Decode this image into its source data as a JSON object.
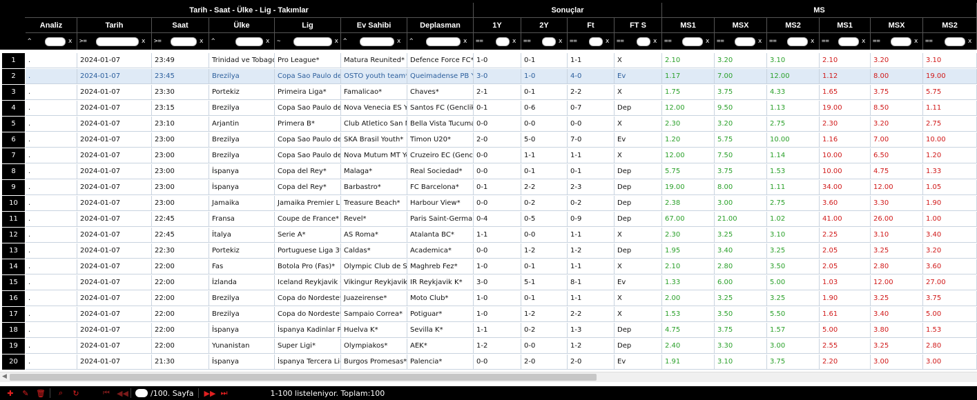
{
  "groups": [
    {
      "id": "info",
      "label": "Tarih - Saat - Ülke - Lig - Takımlar"
    },
    {
      "id": "results",
      "label": "Sonuçlar"
    },
    {
      "id": "ms",
      "label": "MS"
    }
  ],
  "columns": [
    {
      "key": "analiz",
      "label": "Analiz",
      "op": "^"
    },
    {
      "key": "tarih",
      "label": "Tarih",
      "op": ">="
    },
    {
      "key": "saat",
      "label": "Saat",
      "op": ">="
    },
    {
      "key": "ulke",
      "label": "Ülke",
      "op": "^"
    },
    {
      "key": "lig",
      "label": "Lig",
      "op": "~"
    },
    {
      "key": "ev",
      "label": "Ev Sahibi",
      "op": "^"
    },
    {
      "key": "dep",
      "label": "Deplasman",
      "op": "^"
    },
    {
      "key": "y1",
      "label": "1Y",
      "op": "=="
    },
    {
      "key": "y2",
      "label": "2Y",
      "op": "=="
    },
    {
      "key": "ft",
      "label": "Ft",
      "op": "=="
    },
    {
      "key": "fts",
      "label": "FT S",
      "op": "=="
    },
    {
      "key": "ms1a",
      "label": "MS1",
      "op": "=="
    },
    {
      "key": "msxa",
      "label": "MSX",
      "op": "=="
    },
    {
      "key": "ms2a",
      "label": "MS2",
      "op": "=="
    },
    {
      "key": "ms1b",
      "label": "MS1",
      "op": "=="
    },
    {
      "key": "msxb",
      "label": "MSX",
      "op": "=="
    },
    {
      "key": "ms2b",
      "label": "MS2",
      "op": "=="
    }
  ],
  "filter_clear": "x",
  "selected_row": 2,
  "rows": [
    [
      "1",
      ".",
      "2024-01-07",
      "23:49",
      "Trinidad ve Tobago",
      "Pro League*",
      "Matura Reunited*",
      "Defence Force FC*",
      "1-0",
      "0-1",
      "1-1",
      "X",
      "2.10",
      "3.20",
      "3.10",
      "2.10",
      "3.20",
      "3.10"
    ],
    [
      "2",
      ".",
      "2024-01-07",
      "23:45",
      "Brezilya",
      "Copa Sao Paulo de Futebol",
      "OSTO youth team*",
      "Queimadense PB Youth*",
      "3-0",
      "1-0",
      "4-0",
      "Ev",
      "1.17",
      "7.00",
      "12.00",
      "1.12",
      "8.00",
      "19.00"
    ],
    [
      "3",
      ".",
      "2024-01-07",
      "23:30",
      "Portekiz",
      "Primeira Liga*",
      "Famalicao*",
      "Chaves*",
      "2-1",
      "0-1",
      "2-2",
      "X",
      "1.75",
      "3.75",
      "4.33",
      "1.65",
      "3.75",
      "5.75"
    ],
    [
      "4",
      ".",
      "2024-01-07",
      "23:15",
      "Brezilya",
      "Copa Sao Paulo de Futebol",
      "Nova Venecia ES Youth",
      "Santos FC (Genclik)*",
      "0-1",
      "0-6",
      "0-7",
      "Dep",
      "12.00",
      "9.50",
      "1.13",
      "19.00",
      "8.50",
      "1.11"
    ],
    [
      "5",
      ".",
      "2024-01-07",
      "23:10",
      "Arjantin",
      "Primera B*",
      "Club Atletico San Miguel",
      "Bella Vista Tucuman*",
      "0-0",
      "0-0",
      "0-0",
      "X",
      "2.30",
      "3.20",
      "2.75",
      "2.30",
      "3.20",
      "2.75"
    ],
    [
      "6",
      ".",
      "2024-01-07",
      "23:00",
      "Brezilya",
      "Copa Sao Paulo de Futebol",
      "SKA Brasil Youth*",
      "Timon U20*",
      "2-0",
      "5-0",
      "7-0",
      "Ev",
      "1.20",
      "5.75",
      "10.00",
      "1.16",
      "7.00",
      "10.00"
    ],
    [
      "7",
      ".",
      "2024-01-07",
      "23:00",
      "Brezilya",
      "Copa Sao Paulo de Futebol",
      "Nova Mutum MT Youth",
      "Cruzeiro EC (Genclik)",
      "0-0",
      "1-1",
      "1-1",
      "X",
      "12.00",
      "7.50",
      "1.14",
      "10.00",
      "6.50",
      "1.20"
    ],
    [
      "8",
      ".",
      "2024-01-07",
      "23:00",
      "İspanya",
      "Copa del Rey*",
      "Malaga*",
      "Real Sociedad*",
      "0-0",
      "0-1",
      "0-1",
      "Dep",
      "5.75",
      "3.75",
      "1.53",
      "10.00",
      "4.75",
      "1.33"
    ],
    [
      "9",
      ".",
      "2024-01-07",
      "23:00",
      "İspanya",
      "Copa del Rey*",
      "Barbastro*",
      "FC Barcelona*",
      "0-1",
      "2-2",
      "2-3",
      "Dep",
      "19.00",
      "8.00",
      "1.11",
      "34.00",
      "12.00",
      "1.05"
    ],
    [
      "10",
      ".",
      "2024-01-07",
      "23:00",
      "Jamaika",
      "Jamaika Premier Ligi*",
      "Treasure Beach*",
      "Harbour View*",
      "0-0",
      "0-2",
      "0-2",
      "Dep",
      "2.38",
      "3.00",
      "2.75",
      "3.60",
      "3.30",
      "1.90"
    ],
    [
      "11",
      ".",
      "2024-01-07",
      "22:45",
      "Fransa",
      "Coupe de France*",
      "Revel*",
      "Paris Saint-Germain*",
      "0-4",
      "0-5",
      "0-9",
      "Dep",
      "67.00",
      "21.00",
      "1.02",
      "41.00",
      "26.00",
      "1.00"
    ],
    [
      "12",
      ".",
      "2024-01-07",
      "22:45",
      "İtalya",
      "Serie A*",
      "AS Roma*",
      "Atalanta BC*",
      "1-1",
      "0-0",
      "1-1",
      "X",
      "2.30",
      "3.25",
      "3.10",
      "2.25",
      "3.10",
      "3.40"
    ],
    [
      "13",
      ".",
      "2024-01-07",
      "22:30",
      "Portekiz",
      "Portuguese Liga 3*",
      "Caldas*",
      "Academica*",
      "0-0",
      "1-2",
      "1-2",
      "Dep",
      "1.95",
      "3.40",
      "3.25",
      "2.05",
      "3.25",
      "3.20"
    ],
    [
      "14",
      ".",
      "2024-01-07",
      "22:00",
      "Fas",
      "Botola Pro (Fas)*",
      "Olympic Club de Safi*",
      "Maghreb Fez*",
      "1-0",
      "0-1",
      "1-1",
      "X",
      "2.10",
      "2.80",
      "3.50",
      "2.05",
      "2.80",
      "3.60"
    ],
    [
      "15",
      ".",
      "2024-01-07",
      "22:00",
      "İzlanda",
      "Iceland Reykjavik Cup*",
      "Vikingur Reykjavik*",
      "IR Reykjavik K*",
      "3-0",
      "5-1",
      "8-1",
      "Ev",
      "1.33",
      "6.00",
      "5.00",
      "1.03",
      "12.00",
      "27.00"
    ],
    [
      "16",
      ".",
      "2024-01-07",
      "22:00",
      "Brezilya",
      "Copa do Nordeste*",
      "Juazeirense*",
      "Moto Club*",
      "1-0",
      "0-1",
      "1-1",
      "X",
      "2.00",
      "3.25",
      "3.25",
      "1.90",
      "3.25",
      "3.75"
    ],
    [
      "17",
      ".",
      "2024-01-07",
      "22:00",
      "Brezilya",
      "Copa do Nordeste*",
      "Sampaio Correa*",
      "Potiguar*",
      "1-0",
      "1-2",
      "2-2",
      "X",
      "1.53",
      "3.50",
      "5.50",
      "1.61",
      "3.40",
      "5.00"
    ],
    [
      "18",
      ".",
      "2024-01-07",
      "22:00",
      "İspanya",
      "İspanya Kadinlar Primera",
      "Huelva K*",
      "Sevilla K*",
      "1-1",
      "0-2",
      "1-3",
      "Dep",
      "4.75",
      "3.75",
      "1.57",
      "5.00",
      "3.80",
      "1.53"
    ],
    [
      "19",
      ".",
      "2024-01-07",
      "22:00",
      "Yunanistan",
      "Super Ligi*",
      "Olympiakos*",
      "AEK*",
      "1-2",
      "0-0",
      "1-2",
      "Dep",
      "2.40",
      "3.30",
      "3.00",
      "2.55",
      "3.25",
      "2.80"
    ],
    [
      "20",
      ".",
      "2024-01-07",
      "21:30",
      "İspanya",
      "İspanya Tercera Lig*",
      "Burgos Promesas*",
      "Palencia*",
      "0-0",
      "2-0",
      "2-0",
      "Ev",
      "1.91",
      "3.10",
      "3.75",
      "2.20",
      "3.00",
      "3.00"
    ]
  ],
  "footer": {
    "page_value": "",
    "page_suffix": "/100. Sayfa",
    "status": "1-100 listeleniyor. Toplam:100"
  }
}
